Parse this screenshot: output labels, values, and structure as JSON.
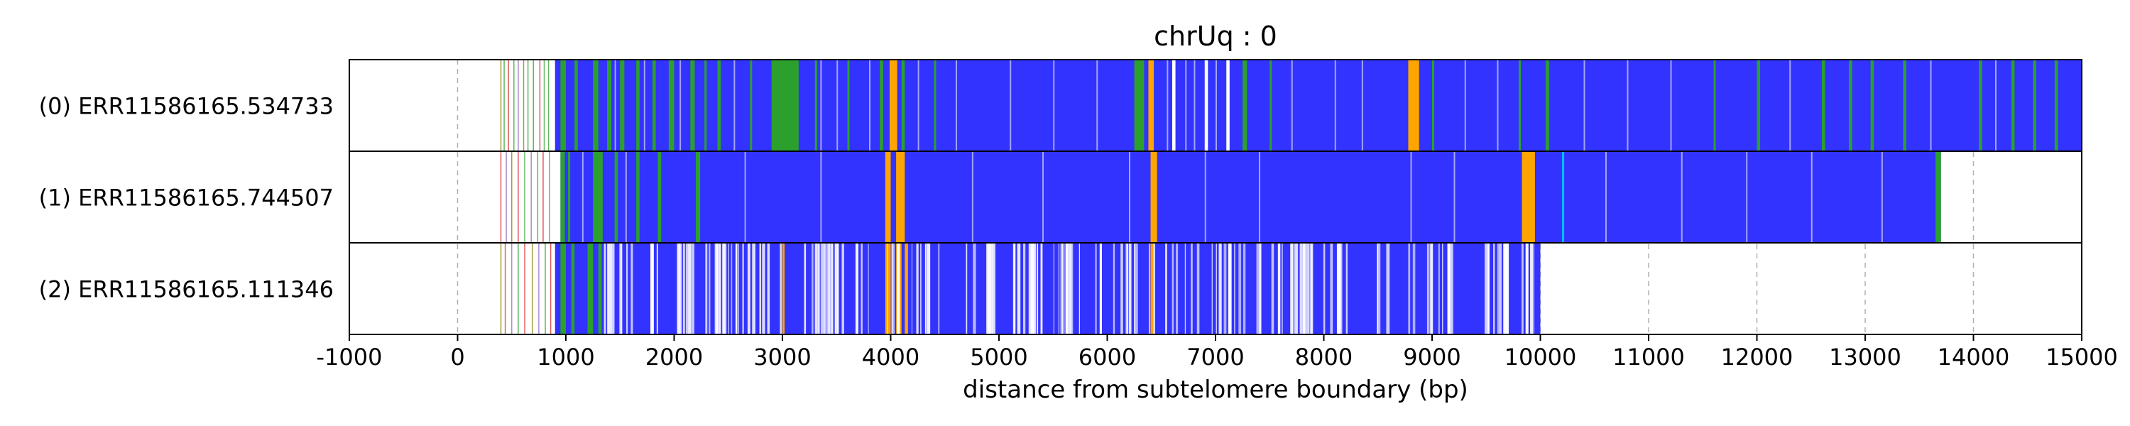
{
  "chart_data": {
    "type": "heatmap",
    "title": "chrUq : 0",
    "xlabel": "distance from subtelomere boundary (bp)",
    "ylabel": "",
    "xlim": [
      -1000,
      15000
    ],
    "xticks": [
      -1000,
      0,
      1000,
      2000,
      3000,
      4000,
      5000,
      6000,
      7000,
      8000,
      9000,
      10000,
      11000,
      12000,
      13000,
      14000,
      15000
    ],
    "xtick_labels": [
      "-1000",
      "0",
      "1000",
      "2000",
      "3000",
      "4000",
      "5000",
      "6000",
      "7000",
      "8000",
      "9000",
      "10000",
      "11000",
      "12000",
      "13000",
      "14000",
      "15000"
    ],
    "grid": "vertical dashed",
    "colors": {
      "blue": "#3333ff",
      "green": "#2ca02c",
      "orange": "#ffa500",
      "cyan": "#00bfff",
      "red": "#d62728",
      "purple": "#9467bd",
      "olive": "#808000",
      "white": "#ffffff"
    },
    "rows": [
      {
        "label": "(0) ERR11586165.534733",
        "blue_span": [
          900,
          15000
        ],
        "faint_lines": [
          {
            "x": 400,
            "color": "olive"
          },
          {
            "x": 430,
            "color": "green"
          },
          {
            "x": 470,
            "color": "red"
          },
          {
            "x": 520,
            "color": "green"
          },
          {
            "x": 560,
            "color": "purple"
          },
          {
            "x": 610,
            "color": "olive"
          },
          {
            "x": 650,
            "color": "green"
          },
          {
            "x": 700,
            "color": "green"
          },
          {
            "x": 760,
            "color": "red"
          },
          {
            "x": 800,
            "color": "green"
          },
          {
            "x": 840,
            "color": "green"
          }
        ],
        "segments": [
          {
            "start": 950,
            "end": 1000,
            "color": "green"
          },
          {
            "start": 1080,
            "end": 1110,
            "color": "green"
          },
          {
            "start": 1250,
            "end": 1300,
            "color": "green"
          },
          {
            "start": 1380,
            "end": 1420,
            "color": "green"
          },
          {
            "start": 1500,
            "end": 1540,
            "color": "green"
          },
          {
            "start": 1650,
            "end": 1680,
            "color": "green"
          },
          {
            "start": 1800,
            "end": 1830,
            "color": "green"
          },
          {
            "start": 1950,
            "end": 2000,
            "color": "green"
          },
          {
            "start": 2150,
            "end": 2190,
            "color": "green"
          },
          {
            "start": 2280,
            "end": 2300,
            "color": "green"
          },
          {
            "start": 2400,
            "end": 2430,
            "color": "green"
          },
          {
            "start": 2700,
            "end": 2720,
            "color": "green"
          },
          {
            "start": 2900,
            "end": 3150,
            "color": "green"
          },
          {
            "start": 3300,
            "end": 3320,
            "color": "green"
          },
          {
            "start": 3600,
            "end": 3620,
            "color": "green"
          },
          {
            "start": 3900,
            "end": 3930,
            "color": "green"
          },
          {
            "start": 3990,
            "end": 4060,
            "color": "orange"
          },
          {
            "start": 4100,
            "end": 4130,
            "color": "green"
          },
          {
            "start": 4400,
            "end": 4420,
            "color": "green"
          },
          {
            "start": 6250,
            "end": 6340,
            "color": "green"
          },
          {
            "start": 6380,
            "end": 6430,
            "color": "orange"
          },
          {
            "start": 6600,
            "end": 6630,
            "color": "white"
          },
          {
            "start": 6900,
            "end": 6930,
            "color": "white"
          },
          {
            "start": 7100,
            "end": 7130,
            "color": "white"
          },
          {
            "start": 7250,
            "end": 7290,
            "color": "green"
          },
          {
            "start": 7500,
            "end": 7520,
            "color": "green"
          },
          {
            "start": 8780,
            "end": 8880,
            "color": "orange"
          },
          {
            "start": 9000,
            "end": 9020,
            "color": "green"
          },
          {
            "start": 9800,
            "end": 9820,
            "color": "green"
          },
          {
            "start": 10050,
            "end": 10080,
            "color": "green"
          },
          {
            "start": 11600,
            "end": 11620,
            "color": "green"
          },
          {
            "start": 12000,
            "end": 12030,
            "color": "green"
          },
          {
            "start": 12600,
            "end": 12630,
            "color": "green"
          },
          {
            "start": 12850,
            "end": 12880,
            "color": "green"
          },
          {
            "start": 13050,
            "end": 13080,
            "color": "green"
          },
          {
            "start": 13350,
            "end": 13380,
            "color": "green"
          },
          {
            "start": 14050,
            "end": 14080,
            "color": "green"
          },
          {
            "start": 14350,
            "end": 14380,
            "color": "green"
          },
          {
            "start": 14550,
            "end": 14580,
            "color": "green"
          },
          {
            "start": 14750,
            "end": 14780,
            "color": "green"
          }
        ],
        "white_lines": [
          1450,
          1720,
          2050,
          2550,
          3350,
          3500,
          3800,
          4250,
          4600,
          5100,
          5500,
          5900,
          6550,
          6720,
          6800,
          7000,
          7700,
          8100,
          8350,
          9300,
          9600,
          10400,
          10800,
          11200,
          12300,
          13600,
          14200
        ]
      },
      {
        "label": "(1) ERR11586165.744507",
        "blue_span": [
          950,
          13700
        ],
        "faint_lines": [
          {
            "x": 400,
            "color": "red"
          },
          {
            "x": 450,
            "color": "purple"
          },
          {
            "x": 500,
            "color": "olive"
          },
          {
            "x": 560,
            "color": "red"
          },
          {
            "x": 620,
            "color": "green"
          },
          {
            "x": 680,
            "color": "purple"
          },
          {
            "x": 740,
            "color": "green"
          },
          {
            "x": 790,
            "color": "red"
          },
          {
            "x": 850,
            "color": "green"
          }
        ],
        "segments": [
          {
            "start": 950,
            "end": 990,
            "color": "green"
          },
          {
            "start": 1020,
            "end": 1040,
            "color": "green"
          },
          {
            "start": 1250,
            "end": 1340,
            "color": "green"
          },
          {
            "start": 1450,
            "end": 1480,
            "color": "green"
          },
          {
            "start": 1650,
            "end": 1680,
            "color": "green"
          },
          {
            "start": 1850,
            "end": 1880,
            "color": "green"
          },
          {
            "start": 2200,
            "end": 2240,
            "color": "green"
          },
          {
            "start": 3950,
            "end": 4000,
            "color": "orange"
          },
          {
            "start": 4050,
            "end": 4130,
            "color": "orange"
          },
          {
            "start": 6400,
            "end": 6460,
            "color": "orange"
          },
          {
            "start": 9830,
            "end": 9950,
            "color": "orange"
          },
          {
            "start": 10200,
            "end": 10220,
            "color": "cyan"
          },
          {
            "start": 13650,
            "end": 13700,
            "color": "green"
          }
        ],
        "white_lines": [
          1150,
          1550,
          2650,
          3350,
          4750,
          5400,
          6200,
          6900,
          7400,
          8800,
          9200,
          10600,
          11300,
          11900,
          12500,
          13150
        ]
      },
      {
        "label": "(2) ERR11586165.111346",
        "blue_span": [
          900,
          10000
        ],
        "faint_lines": [
          {
            "x": 400,
            "color": "olive"
          },
          {
            "x": 440,
            "color": "red"
          },
          {
            "x": 500,
            "color": "purple"
          },
          {
            "x": 560,
            "color": "green"
          },
          {
            "x": 620,
            "color": "red"
          },
          {
            "x": 690,
            "color": "olive"
          },
          {
            "x": 750,
            "color": "purple"
          },
          {
            "x": 810,
            "color": "green"
          },
          {
            "x": 860,
            "color": "red"
          }
        ],
        "segments": [
          {
            "start": 950,
            "end": 1000,
            "color": "green"
          },
          {
            "start": 1050,
            "end": 1080,
            "color": "green"
          },
          {
            "start": 1200,
            "end": 1250,
            "color": "green"
          },
          {
            "start": 1300,
            "end": 1330,
            "color": "green"
          },
          {
            "start": 3000,
            "end": 3020,
            "color": "orange"
          },
          {
            "start": 3950,
            "end": 4000,
            "color": "orange"
          },
          {
            "start": 4050,
            "end": 4100,
            "color": "orange"
          },
          {
            "start": 4130,
            "end": 4160,
            "color": "orange"
          },
          {
            "start": 6400,
            "end": 6430,
            "color": "orange"
          }
        ],
        "dense_white": {
          "start": 1350,
          "end": 9950,
          "count": 190
        }
      }
    ]
  }
}
